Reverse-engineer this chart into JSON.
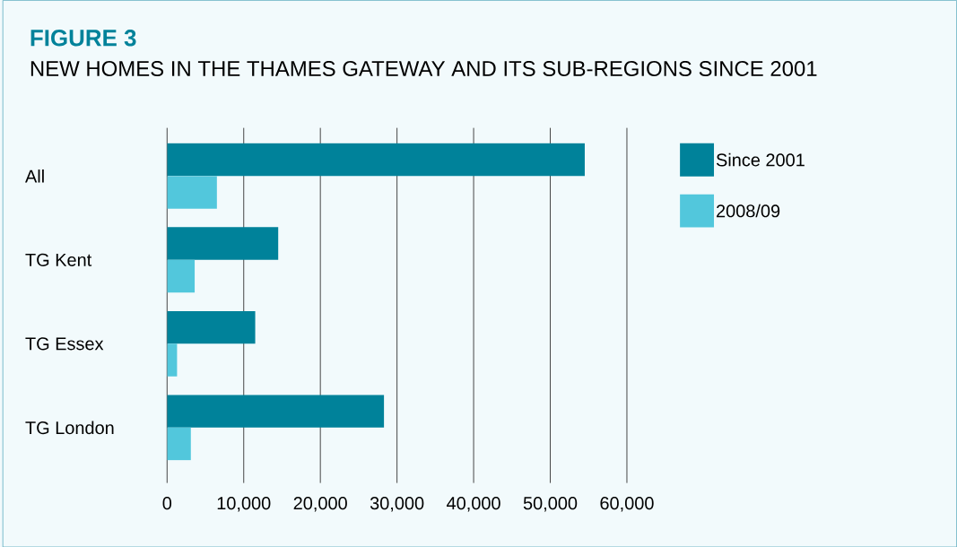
{
  "chart_data": {
    "type": "bar",
    "orientation": "horizontal",
    "title": "FIGURE 3",
    "subtitle": "NEW HOMES IN THE THAMES GATEWAY AND ITS SUB-REGIONS SINCE 2001",
    "categories": [
      "All",
      "TG Kent",
      "TG Essex",
      "TG London"
    ],
    "series": [
      {
        "name": "Since 2001",
        "color": "#00829a",
        "values": [
          54500,
          14500,
          11500,
          28300
        ]
      },
      {
        "name": "2008/09",
        "color": "#52c7dc",
        "values": [
          6500,
          3600,
          1300,
          3100
        ]
      }
    ],
    "xlim": [
      0,
      60000
    ],
    "xticks": [
      0,
      {
        "value": 10000,
        "label": "10,000"
      },
      {
        "value": 20000,
        "label": "20,000"
      },
      {
        "value": 30000,
        "label": "30,000"
      },
      {
        "value": 40000,
        "label": "40,000"
      },
      {
        "value": 50000,
        "label": "50,000"
      },
      {
        "value": 60000,
        "label": "60,000"
      }
    ],
    "grid": "x",
    "legend": "right"
  }
}
